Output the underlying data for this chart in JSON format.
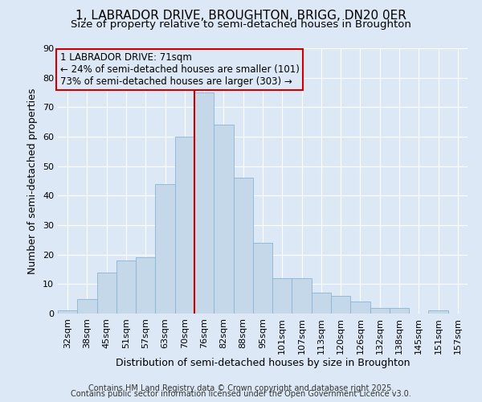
{
  "title": "1, LABRADOR DRIVE, BROUGHTON, BRIGG, DN20 0ER",
  "subtitle": "Size of property relative to semi-detached houses in Broughton",
  "xlabel": "Distribution of semi-detached houses by size in Broughton",
  "ylabel": "Number of semi-detached properties",
  "footnote1": "Contains HM Land Registry data © Crown copyright and database right 2025.",
  "footnote2": "Contains public sector information licensed under the Open Government Licence v3.0.",
  "bar_labels": [
    "32sqm",
    "38sqm",
    "45sqm",
    "51sqm",
    "57sqm",
    "63sqm",
    "70sqm",
    "76sqm",
    "82sqm",
    "88sqm",
    "95sqm",
    "101sqm",
    "107sqm",
    "113sqm",
    "120sqm",
    "126sqm",
    "132sqm",
    "138sqm",
    "145sqm",
    "151sqm",
    "157sqm"
  ],
  "bar_values": [
    1,
    5,
    14,
    18,
    19,
    44,
    60,
    75,
    64,
    46,
    24,
    12,
    12,
    7,
    6,
    4,
    2,
    2,
    0,
    1,
    0
  ],
  "bar_color": "#c5d8ea",
  "bar_edge_color": "#8ab4d4",
  "highlight_line_color": "#cc0000",
  "annotation_text_line1": "1 LABRADOR DRIVE: 71sqm",
  "annotation_text_line2": "← 24% of semi-detached houses are smaller (101)",
  "annotation_text_line3": "73% of semi-detached houses are larger (303) →",
  "annotation_box_color": "#cc0000",
  "ylim": [
    0,
    90
  ],
  "yticks": [
    0,
    10,
    20,
    30,
    40,
    50,
    60,
    70,
    80,
    90
  ],
  "background_color": "#dce8f5",
  "grid_color": "#ffffff",
  "title_fontsize": 11,
  "subtitle_fontsize": 9.5,
  "axis_label_fontsize": 9,
  "tick_fontsize": 8,
  "footnote_fontsize": 7,
  "annotation_fontsize": 8.5
}
